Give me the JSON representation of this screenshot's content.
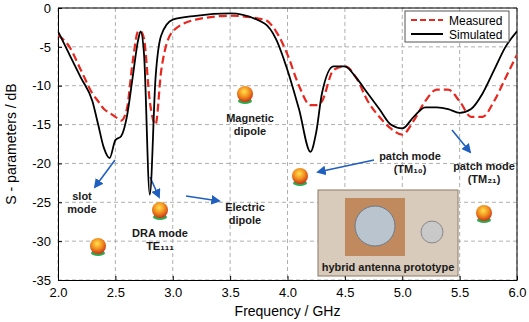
{
  "chart_data": {
    "type": "line",
    "x_label": "Frequency / GHz",
    "y_label": "S - parameters / dB",
    "x": [
      2.0,
      2.1,
      2.2,
      2.3,
      2.35,
      2.4,
      2.45,
      2.5,
      2.55,
      2.6,
      2.65,
      2.7,
      2.72,
      2.75,
      2.8,
      2.85,
      2.9,
      3.0,
      3.2,
      3.5,
      3.8,
      3.9,
      4.0,
      4.1,
      4.2,
      4.25,
      4.3,
      4.4,
      4.5,
      4.6,
      4.7,
      4.8,
      4.9,
      5.0,
      5.1,
      5.2,
      5.3,
      5.4,
      5.5,
      5.6,
      5.7,
      5.8,
      5.9,
      6.0
    ],
    "series": [
      {
        "name": "Measured",
        "color": "#e8271f",
        "line_style": "dashed",
        "values": [
          -3.5,
          -5,
          -8,
          -11,
          -12,
          -13,
          -13.5,
          -14,
          -14.5,
          -13,
          -7,
          -3,
          -3,
          -4,
          -12,
          -15,
          -8,
          -3,
          -1.5,
          -1,
          -1.5,
          -3,
          -6,
          -10,
          -12.5,
          -12.5,
          -12,
          -8,
          -7.5,
          -9,
          -12,
          -14,
          -15.5,
          -16.3,
          -14.5,
          -12,
          -10.5,
          -10.5,
          -12,
          -14,
          -14,
          -12,
          -9,
          -6
        ]
      },
      {
        "name": "Simulated",
        "color": "#000000",
        "line_style": "solid",
        "values": [
          -3,
          -6,
          -9,
          -12,
          -15,
          -18,
          -19.3,
          -17,
          -16.5,
          -14,
          -9,
          -4,
          -3,
          -6,
          -24,
          -9,
          -3.5,
          -1.5,
          -1,
          -0.7,
          -2,
          -4,
          -8,
          -13,
          -18.5,
          -16,
          -11,
          -7.5,
          -7.5,
          -9,
          -11,
          -13,
          -15,
          -15.5,
          -14,
          -12.8,
          -12.8,
          -13,
          -13.5,
          -13,
          -11,
          -8,
          -5,
          -3
        ]
      }
    ],
    "xlim": [
      2,
      6
    ],
    "xticks": [
      {
        "value": 2,
        "label": "2.0"
      },
      2.5,
      {
        "value": 3,
        "label": "3.0"
      },
      3.5,
      {
        "value": 4,
        "label": "4.0"
      },
      4.5,
      {
        "value": 5,
        "label": "5.0"
      },
      5.5,
      {
        "value": 6,
        "label": "6.0"
      }
    ],
    "ylim": [
      -35,
      0
    ],
    "yticks": [
      -35,
      -30,
      -25,
      -20,
      -15,
      -10,
      -5,
      0
    ],
    "grid": true,
    "legend": "upper right",
    "annotations": [
      "slot mode",
      "DRA mode TE₁₁₁",
      "Electric dipole",
      "Magnetic dipole",
      "patch mode (TM₁₀)",
      "patch mode (TM₂₁)",
      "hybrid antenna prototype"
    ]
  }
}
